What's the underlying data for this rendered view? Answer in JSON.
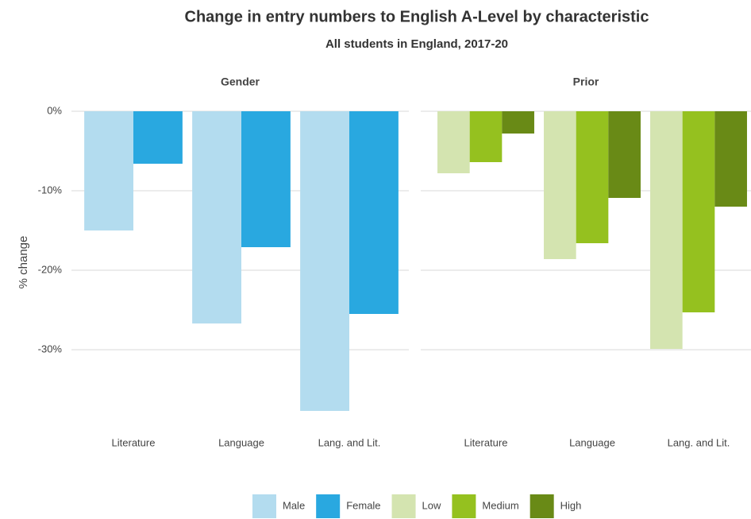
{
  "chart_data": {
    "type": "bar",
    "title": "Change in entry numbers to English A-Level by characteristic",
    "subtitle": "All students in England, 2017-20",
    "ylabel": "% change",
    "ylim": [
      -39,
      1
    ],
    "yticks": [
      {
        "value": 0,
        "label": "0%"
      },
      {
        "value": -10,
        "label": "-10%"
      },
      {
        "value": -20,
        "label": "-20%"
      },
      {
        "value": -30,
        "label": "-30%"
      }
    ],
    "grid": true,
    "legend": "bottom",
    "facets": [
      {
        "title": "Gender",
        "categories": [
          "Literature",
          "Language",
          "Lang. and Lit."
        ],
        "series": [
          {
            "name": "Male",
            "color": "#b3dcef",
            "values": [
              -15,
              -26.7,
              -37.7
            ]
          },
          {
            "name": "Female",
            "color": "#29a8e0",
            "values": [
              -6.6,
              -17.1,
              -25.5
            ]
          }
        ]
      },
      {
        "title": "Prior",
        "categories": [
          "Literature",
          "Language",
          "Lang. and Lit."
        ],
        "series": [
          {
            "name": "Low",
            "color": "#d4e4b0",
            "values": [
              -7.8,
              -18.6,
              -29.9
            ]
          },
          {
            "name": "Medium",
            "color": "#95c11f",
            "values": [
              -6.4,
              -16.6,
              -25.3
            ]
          },
          {
            "name": "High",
            "color": "#698a16",
            "values": [
              -2.8,
              -10.9,
              -12
            ]
          }
        ]
      }
    ]
  }
}
